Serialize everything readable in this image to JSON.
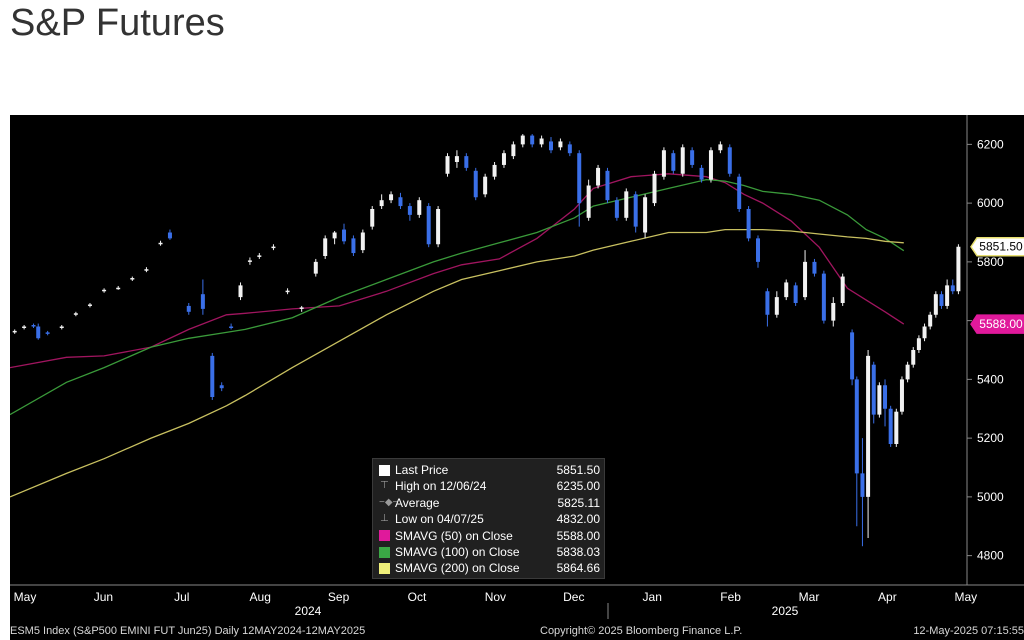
{
  "page": {
    "title": "S&P Futures"
  },
  "chart_data": {
    "type": "candlestick",
    "ylim": [
      4700,
      6300
    ],
    "yticks": [
      4800,
      5000,
      5200,
      5400,
      5600,
      5800,
      6000,
      6200
    ],
    "x_months": [
      "May",
      "Jun",
      "Jul",
      "Aug",
      "Sep",
      "Oct",
      "Nov",
      "Dec",
      "Jan",
      "Feb",
      "Mar",
      "Apr",
      "May"
    ],
    "x_years": [
      "2024",
      "2025"
    ],
    "price_tags": [
      {
        "label": "5851.50",
        "value": 5851.5,
        "color": "#ffffff",
        "border": "#e8e070"
      },
      {
        "label": "5588.00",
        "value": 5588.0,
        "color": "#e0199b",
        "border": "#e0199b"
      }
    ],
    "legend": {
      "rows": [
        {
          "label": "Last Price",
          "value": "5851.50",
          "color": "#ffffff",
          "icon": "square"
        },
        {
          "label": "High on 12/06/24",
          "value": "6235.00",
          "color": "#9a9a9a",
          "icon": "high-marker"
        },
        {
          "label": "Average",
          "value": "5825.11",
          "color": "#9a9a9a",
          "icon": "average-marker"
        },
        {
          "label": "Low on 04/07/25",
          "value": "4832.00",
          "color": "#9a9a9a",
          "icon": "low-marker"
        },
        {
          "label": "SMAVG (50)  on Close",
          "value": "5588.00",
          "color": "#e0199b",
          "icon": "square"
        },
        {
          "label": "SMAVG (100)  on Close",
          "value": "5838.03",
          "color": "#3aa845",
          "icon": "square"
        },
        {
          "label": "SMAVG (200)  on Close",
          "value": "5864.66",
          "color": "#f0f07a",
          "icon": "square"
        }
      ]
    },
    "series": [
      {
        "name": "SMAVG (50)",
        "color": "#a0155f",
        "points": [
          [
            0,
            5440
          ],
          [
            6,
            5475
          ],
          [
            10,
            5480
          ],
          [
            15,
            5510
          ],
          [
            19,
            5570
          ],
          [
            23,
            5620
          ],
          [
            25,
            5625
          ],
          [
            30,
            5640
          ],
          [
            35,
            5650
          ],
          [
            40,
            5700
          ],
          [
            45,
            5760
          ],
          [
            48,
            5790
          ],
          [
            52,
            5810
          ],
          [
            56,
            5880
          ],
          [
            60,
            5980
          ],
          [
            62,
            6050
          ],
          [
            66,
            6090
          ],
          [
            70,
            6100
          ],
          [
            74,
            6090
          ],
          [
            76,
            6070
          ],
          [
            78,
            6030
          ],
          [
            80,
            6000
          ],
          [
            83,
            5940
          ],
          [
            86,
            5850
          ],
          [
            89,
            5710
          ],
          [
            91,
            5670
          ],
          [
            93,
            5630
          ],
          [
            95,
            5588
          ]
        ]
      },
      {
        "name": "SMAVG (100)",
        "color": "#3a9a3a",
        "points": [
          [
            0,
            5280
          ],
          [
            6,
            5390
          ],
          [
            10,
            5440
          ],
          [
            15,
            5510
          ],
          [
            19,
            5540
          ],
          [
            23,
            5560
          ],
          [
            25,
            5570
          ],
          [
            30,
            5610
          ],
          [
            35,
            5680
          ],
          [
            40,
            5740
          ],
          [
            45,
            5800
          ],
          [
            48,
            5830
          ],
          [
            52,
            5865
          ],
          [
            56,
            5900
          ],
          [
            60,
            5950
          ],
          [
            62,
            5990
          ],
          [
            66,
            6020
          ],
          [
            70,
            6050
          ],
          [
            74,
            6080
          ],
          [
            76,
            6075
          ],
          [
            78,
            6060
          ],
          [
            80,
            6040
          ],
          [
            83,
            6030
          ],
          [
            86,
            6010
          ],
          [
            89,
            5960
          ],
          [
            91,
            5910
          ],
          [
            93,
            5880
          ],
          [
            95,
            5838
          ]
        ]
      },
      {
        "name": "SMAVG (200)",
        "color": "#c8c060",
        "points": [
          [
            0,
            5000
          ],
          [
            6,
            5080
          ],
          [
            10,
            5130
          ],
          [
            15,
            5200
          ],
          [
            19,
            5250
          ],
          [
            23,
            5310
          ],
          [
            25,
            5345
          ],
          [
            30,
            5440
          ],
          [
            35,
            5530
          ],
          [
            40,
            5620
          ],
          [
            45,
            5700
          ],
          [
            48,
            5740
          ],
          [
            52,
            5770
          ],
          [
            56,
            5800
          ],
          [
            60,
            5820
          ],
          [
            62,
            5840
          ],
          [
            66,
            5870
          ],
          [
            70,
            5900
          ],
          [
            74,
            5900
          ],
          [
            76,
            5910
          ],
          [
            78,
            5910
          ],
          [
            80,
            5910
          ],
          [
            83,
            5905
          ],
          [
            86,
            5895
          ],
          [
            89,
            5885
          ],
          [
            91,
            5880
          ],
          [
            93,
            5870
          ],
          [
            95,
            5865
          ]
        ]
      }
    ],
    "candles": [
      {
        "t": 0.5,
        "o": 5560,
        "c": 5565,
        "h": 5570,
        "l": 5555
      },
      {
        "t": 1.5,
        "o": 5575,
        "c": 5580,
        "h": 5585,
        "l": 5570
      },
      {
        "t": 2.5,
        "o": 5585,
        "c": 5580,
        "h": 5590,
        "l": 5575
      },
      {
        "t": 3,
        "o": 5580,
        "c": 5540,
        "h": 5590,
        "l": 5535
      },
      {
        "t": 4,
        "o": 5560,
        "c": 5555,
        "h": 5565,
        "l": 5550
      },
      {
        "t": 5.5,
        "o": 5575,
        "c": 5580,
        "h": 5585,
        "l": 5570
      },
      {
        "t": 7,
        "o": 5620,
        "c": 5625,
        "h": 5630,
        "l": 5615
      },
      {
        "t": 8.5,
        "o": 5650,
        "c": 5655,
        "h": 5660,
        "l": 5645
      },
      {
        "t": 10,
        "o": 5700,
        "c": 5705,
        "h": 5710,
        "l": 5695
      },
      {
        "t": 11.5,
        "o": 5710,
        "c": 5712,
        "h": 5718,
        "l": 5705
      },
      {
        "t": 13,
        "o": 5740,
        "c": 5745,
        "h": 5750,
        "l": 5735
      },
      {
        "t": 14.5,
        "o": 5770,
        "c": 5775,
        "h": 5782,
        "l": 5765
      },
      {
        "t": 16,
        "o": 5860,
        "c": 5865,
        "h": 5872,
        "l": 5855
      },
      {
        "t": 17,
        "o": 5900,
        "c": 5880,
        "h": 5910,
        "l": 5875
      },
      {
        "t": 19,
        "o": 5650,
        "c": 5630,
        "h": 5660,
        "l": 5620
      },
      {
        "t": 20.5,
        "o": 5690,
        "c": 5640,
        "h": 5740,
        "l": 5620
      },
      {
        "t": 21.5,
        "o": 5480,
        "c": 5340,
        "h": 5490,
        "l": 5330
      },
      {
        "t": 22.5,
        "o": 5380,
        "c": 5370,
        "h": 5390,
        "l": 5360
      },
      {
        "t": 23.5,
        "o": 5580,
        "c": 5575,
        "h": 5590,
        "l": 5570
      },
      {
        "t": 24.5,
        "o": 5680,
        "c": 5720,
        "h": 5730,
        "l": 5670
      },
      {
        "t": 25.5,
        "o": 5800,
        "c": 5805,
        "h": 5815,
        "l": 5790
      },
      {
        "t": 26.5,
        "o": 5820,
        "c": 5822,
        "h": 5830,
        "l": 5810
      },
      {
        "t": 28,
        "o": 5850,
        "c": 5852,
        "h": 5860,
        "l": 5840
      },
      {
        "t": 29.5,
        "o": 5700,
        "c": 5702,
        "h": 5710,
        "l": 5690
      },
      {
        "t": 31,
        "o": 5640,
        "c": 5645,
        "h": 5650,
        "l": 5630
      },
      {
        "t": 32.5,
        "o": 5760,
        "c": 5800,
        "h": 5810,
        "l": 5750
      },
      {
        "t": 33.5,
        "o": 5820,
        "c": 5880,
        "h": 5890,
        "l": 5810
      },
      {
        "t": 34.5,
        "o": 5880,
        "c": 5900,
        "h": 5905,
        "l": 5860
      },
      {
        "t": 35.5,
        "o": 5910,
        "c": 5870,
        "h": 5930,
        "l": 5860
      },
      {
        "t": 36.5,
        "o": 5880,
        "c": 5830,
        "h": 5890,
        "l": 5820
      },
      {
        "t": 37.5,
        "o": 5840,
        "c": 5900,
        "h": 5910,
        "l": 5830
      },
      {
        "t": 38.5,
        "o": 5920,
        "c": 5980,
        "h": 5990,
        "l": 5910
      },
      {
        "t": 39.5,
        "o": 5990,
        "c": 6010,
        "h": 6030,
        "l": 5980
      },
      {
        "t": 40.5,
        "o": 6010,
        "c": 6030,
        "h": 6040,
        "l": 6000
      },
      {
        "t": 41.5,
        "o": 6020,
        "c": 5990,
        "h": 6035,
        "l": 5980
      },
      {
        "t": 42.5,
        "o": 5990,
        "c": 5960,
        "h": 6000,
        "l": 5940
      },
      {
        "t": 43.5,
        "o": 5960,
        "c": 6010,
        "h": 6020,
        "l": 5950
      },
      {
        "t": 44.5,
        "o": 5990,
        "c": 5860,
        "h": 6000,
        "l": 5850
      },
      {
        "t": 45.5,
        "o": 5860,
        "c": 5980,
        "h": 5990,
        "l": 5850
      },
      {
        "t": 46.5,
        "o": 6100,
        "c": 6160,
        "h": 6170,
        "l": 6090
      },
      {
        "t": 47.5,
        "o": 6140,
        "c": 6160,
        "h": 6180,
        "l": 6120
      },
      {
        "t": 48.5,
        "o": 6160,
        "c": 6120,
        "h": 6170,
        "l": 6110
      },
      {
        "t": 49.5,
        "o": 6110,
        "c": 6020,
        "h": 6120,
        "l": 6010
      },
      {
        "t": 50.5,
        "o": 6030,
        "c": 6090,
        "h": 6100,
        "l": 6020
      },
      {
        "t": 51.5,
        "o": 6090,
        "c": 6130,
        "h": 6140,
        "l": 6080
      },
      {
        "t": 52.5,
        "o": 6130,
        "c": 6170,
        "h": 6180,
        "l": 6120
      },
      {
        "t": 53.5,
        "o": 6160,
        "c": 6200,
        "h": 6210,
        "l": 6150
      },
      {
        "t": 54.5,
        "o": 6200,
        "c": 6230,
        "h": 6235,
        "l": 6190
      },
      {
        "t": 55.5,
        "o": 6230,
        "c": 6200,
        "h": 6235,
        "l": 6190
      },
      {
        "t": 56.5,
        "o": 6200,
        "c": 6220,
        "h": 6230,
        "l": 6190
      },
      {
        "t": 57.5,
        "o": 6210,
        "c": 6180,
        "h": 6225,
        "l": 6170
      },
      {
        "t": 58.5,
        "o": 6190,
        "c": 6210,
        "h": 6220,
        "l": 6180
      },
      {
        "t": 59.5,
        "o": 6200,
        "c": 6170,
        "h": 6210,
        "l": 6160
      },
      {
        "t": 60.5,
        "o": 6170,
        "c": 6000,
        "h": 6180,
        "l": 5920
      },
      {
        "t": 61.5,
        "o": 5950,
        "c": 6060,
        "h": 6080,
        "l": 5940
      },
      {
        "t": 62.5,
        "o": 6060,
        "c": 6120,
        "h": 6130,
        "l": 6050
      },
      {
        "t": 63.5,
        "o": 6110,
        "c": 6010,
        "h": 6120,
        "l": 6000
      },
      {
        "t": 64.5,
        "o": 6010,
        "c": 5950,
        "h": 6020,
        "l": 5940
      },
      {
        "t": 65.5,
        "o": 5950,
        "c": 6040,
        "h": 6050,
        "l": 5940
      },
      {
        "t": 66.5,
        "o": 6030,
        "c": 5920,
        "h": 6040,
        "l": 5900
      },
      {
        "t": 67.5,
        "o": 5900,
        "c": 6020,
        "h": 6030,
        "l": 5880
      },
      {
        "t": 68.5,
        "o": 6000,
        "c": 6100,
        "h": 6110,
        "l": 5990
      },
      {
        "t": 69.5,
        "o": 6090,
        "c": 6180,
        "h": 6190,
        "l": 6080
      },
      {
        "t": 70.5,
        "o": 6170,
        "c": 6110,
        "h": 6180,
        "l": 6100
      },
      {
        "t": 71.5,
        "o": 6100,
        "c": 6190,
        "h": 6200,
        "l": 6090
      },
      {
        "t": 72.5,
        "o": 6180,
        "c": 6130,
        "h": 6190,
        "l": 6120
      },
      {
        "t": 73.5,
        "o": 6120,
        "c": 6080,
        "h": 6130,
        "l": 6070
      },
      {
        "t": 74.5,
        "o": 6080,
        "c": 6180,
        "h": 6190,
        "l": 6070
      },
      {
        "t": 75.5,
        "o": 6180,
        "c": 6200,
        "h": 6210,
        "l": 6170
      },
      {
        "t": 76.5,
        "o": 6190,
        "c": 6100,
        "h": 6200,
        "l": 6090
      },
      {
        "t": 77.5,
        "o": 6090,
        "c": 5980,
        "h": 6100,
        "l": 5970
      },
      {
        "t": 78.5,
        "o": 5980,
        "c": 5880,
        "h": 5990,
        "l": 5870
      },
      {
        "t": 79.5,
        "o": 5880,
        "c": 5800,
        "h": 5890,
        "l": 5780
      },
      {
        "t": 80.5,
        "o": 5700,
        "c": 5620,
        "h": 5710,
        "l": 5580
      },
      {
        "t": 81.5,
        "o": 5620,
        "c": 5680,
        "h": 5700,
        "l": 5610
      },
      {
        "t": 82.5,
        "o": 5680,
        "c": 5730,
        "h": 5740,
        "l": 5670
      },
      {
        "t": 83.5,
        "o": 5720,
        "c": 5660,
        "h": 5730,
        "l": 5650
      },
      {
        "t": 84.5,
        "o": 5680,
        "c": 5800,
        "h": 5840,
        "l": 5670
      },
      {
        "t": 85.5,
        "o": 5800,
        "c": 5760,
        "h": 5810,
        "l": 5750
      },
      {
        "t": 86.5,
        "o": 5760,
        "c": 5600,
        "h": 5770,
        "l": 5590
      },
      {
        "t": 87.5,
        "o": 5600,
        "c": 5660,
        "h": 5680,
        "l": 5580
      },
      {
        "t": 88.5,
        "o": 5660,
        "c": 5750,
        "h": 5760,
        "l": 5650
      },
      {
        "t": 89.5,
        "o": 5560,
        "c": 5400,
        "h": 5570,
        "l": 5380
      },
      {
        "t": 90,
        "o": 5400,
        "c": 5080,
        "h": 5410,
        "l": 4900
      },
      {
        "t": 90.6,
        "o": 5080,
        "c": 5000,
        "h": 5200,
        "l": 4832
      },
      {
        "t": 91.2,
        "o": 5000,
        "c": 5480,
        "h": 5500,
        "l": 4860
      },
      {
        "t": 91.8,
        "o": 5450,
        "c": 5280,
        "h": 5460,
        "l": 5250
      },
      {
        "t": 92.4,
        "o": 5280,
        "c": 5380,
        "h": 5390,
        "l": 5270
      },
      {
        "t": 93,
        "o": 5380,
        "c": 5300,
        "h": 5400,
        "l": 5240
      },
      {
        "t": 93.6,
        "o": 5300,
        "c": 5180,
        "h": 5310,
        "l": 5170
      },
      {
        "t": 94.2,
        "o": 5180,
        "c": 5290,
        "h": 5300,
        "l": 5170
      },
      {
        "t": 94.8,
        "o": 5290,
        "c": 5400,
        "h": 5410,
        "l": 5280
      },
      {
        "t": 95.4,
        "o": 5400,
        "c": 5450,
        "h": 5460,
        "l": 5390
      },
      {
        "t": 96,
        "o": 5450,
        "c": 5500,
        "h": 5510,
        "l": 5440
      },
      {
        "t": 96.6,
        "o": 5500,
        "c": 5540,
        "h": 5550,
        "l": 5490
      },
      {
        "t": 97.2,
        "o": 5540,
        "c": 5580,
        "h": 5590,
        "l": 5530
      },
      {
        "t": 97.8,
        "o": 5580,
        "c": 5620,
        "h": 5630,
        "l": 5570
      },
      {
        "t": 98.4,
        "o": 5620,
        "c": 5690,
        "h": 5700,
        "l": 5610
      },
      {
        "t": 99,
        "o": 5690,
        "c": 5650,
        "h": 5700,
        "l": 5640
      },
      {
        "t": 99.6,
        "o": 5650,
        "c": 5720,
        "h": 5740,
        "l": 5640
      },
      {
        "t": 100.2,
        "o": 5720,
        "c": 5700,
        "h": 5740,
        "l": 5690
      },
      {
        "t": 100.8,
        "o": 5700,
        "c": 5851.5,
        "h": 5860,
        "l": 5690
      }
    ]
  },
  "footer": {
    "left": "ESM5 Index (S&P500 EMINI FUT  Jun25)  Daily 12MAY2024-12MAY2025",
    "center": "Copyright© 2025 Bloomberg Finance L.P.",
    "right": "12-May-2025 07:15:55"
  }
}
